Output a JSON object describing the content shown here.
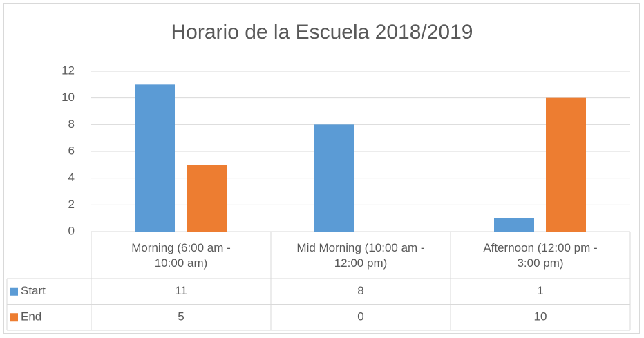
{
  "chart_data": {
    "type": "bar",
    "title": "Horario de la Escuela 2018/2019",
    "categories": [
      "Morning (6:00 am - 10:00 am)",
      "Mid Morning (10:00 am - 12:00 pm)",
      "Afternoon (12:00 pm - 3:00 pm)"
    ],
    "series": [
      {
        "name": "Start",
        "color": "#5b9bd5",
        "values": [
          11,
          8,
          1
        ]
      },
      {
        "name": "End",
        "color": "#ed7d31",
        "values": [
          5,
          0,
          10
        ]
      }
    ],
    "ylim": [
      0,
      12
    ],
    "yticks": [
      0,
      2,
      4,
      6,
      8,
      10,
      12
    ],
    "grid": true
  }
}
